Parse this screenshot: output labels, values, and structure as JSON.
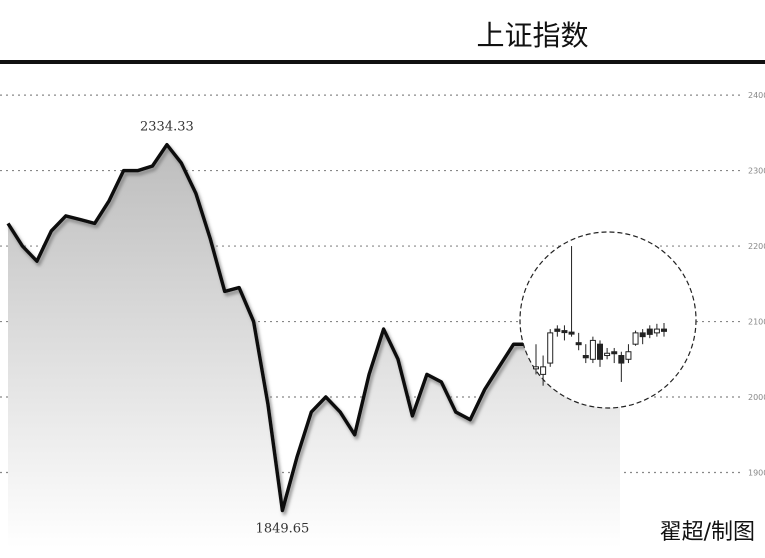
{
  "title": "上证指数",
  "credit": "翟超/制图",
  "chart_data": {
    "type": "area",
    "grid": "horizontal-dotted",
    "ylim": [
      1800,
      2420
    ],
    "ytick_values": [
      1900,
      2000,
      2100,
      2200,
      2300,
      2400
    ],
    "annotations": [
      {
        "label": "2334.33",
        "value": 2334.33
      },
      {
        "label": "1849.65",
        "value": 1849.65
      }
    ],
    "series": [
      {
        "values": [
          2230,
          2200,
          2180,
          2220,
          2240,
          2235,
          2230,
          2260,
          2300,
          2300,
          2306,
          2334.33,
          2310,
          2270,
          2210,
          2140,
          2145,
          2100,
          1990,
          1849.65,
          1920,
          1980,
          2000,
          1980,
          1950,
          2030,
          2090,
          2050,
          1975,
          2030,
          2020,
          1980,
          1970,
          2010,
          2040,
          2070,
          2070
        ]
      }
    ],
    "candlestick_inset": {
      "candles": [
        {
          "open": 2040,
          "close": 2040,
          "high": 2070,
          "low": 2030
        },
        {
          "open": 2030,
          "close": 2040,
          "high": 2055,
          "low": 2015
        },
        {
          "open": 2045,
          "close": 2085,
          "high": 2090,
          "low": 2040
        },
        {
          "open": 2090,
          "close": 2087,
          "high": 2095,
          "low": 2080
        },
        {
          "open": 2088,
          "close": 2086,
          "high": 2095,
          "low": 2075
        },
        {
          "open": 2086,
          "close": 2085,
          "high": 2200,
          "low": 2080
        },
        {
          "open": 2072,
          "close": 2070,
          "high": 2085,
          "low": 2062
        },
        {
          "open": 2055,
          "close": 2052,
          "high": 2070,
          "low": 2045
        },
        {
          "open": 2050,
          "close": 2075,
          "high": 2080,
          "low": 2045
        },
        {
          "open": 2070,
          "close": 2050,
          "high": 2075,
          "low": 2040
        },
        {
          "open": 2055,
          "close": 2058,
          "high": 2065,
          "low": 2050
        },
        {
          "open": 2060,
          "close": 2058,
          "high": 2065,
          "low": 2045
        },
        {
          "open": 2055,
          "close": 2045,
          "high": 2060,
          "low": 2020
        },
        {
          "open": 2050,
          "close": 2060,
          "high": 2070,
          "low": 2045
        },
        {
          "open": 2070,
          "close": 2085,
          "high": 2088,
          "low": 2068
        },
        {
          "open": 2085,
          "close": 2080,
          "high": 2090,
          "low": 2070
        },
        {
          "open": 2090,
          "close": 2083,
          "high": 2095,
          "low": 2078
        },
        {
          "open": 2085,
          "close": 2090,
          "high": 2097,
          "low": 2080
        },
        {
          "open": 2090,
          "close": 2087,
          "high": 2098,
          "low": 2080
        }
      ]
    }
  }
}
